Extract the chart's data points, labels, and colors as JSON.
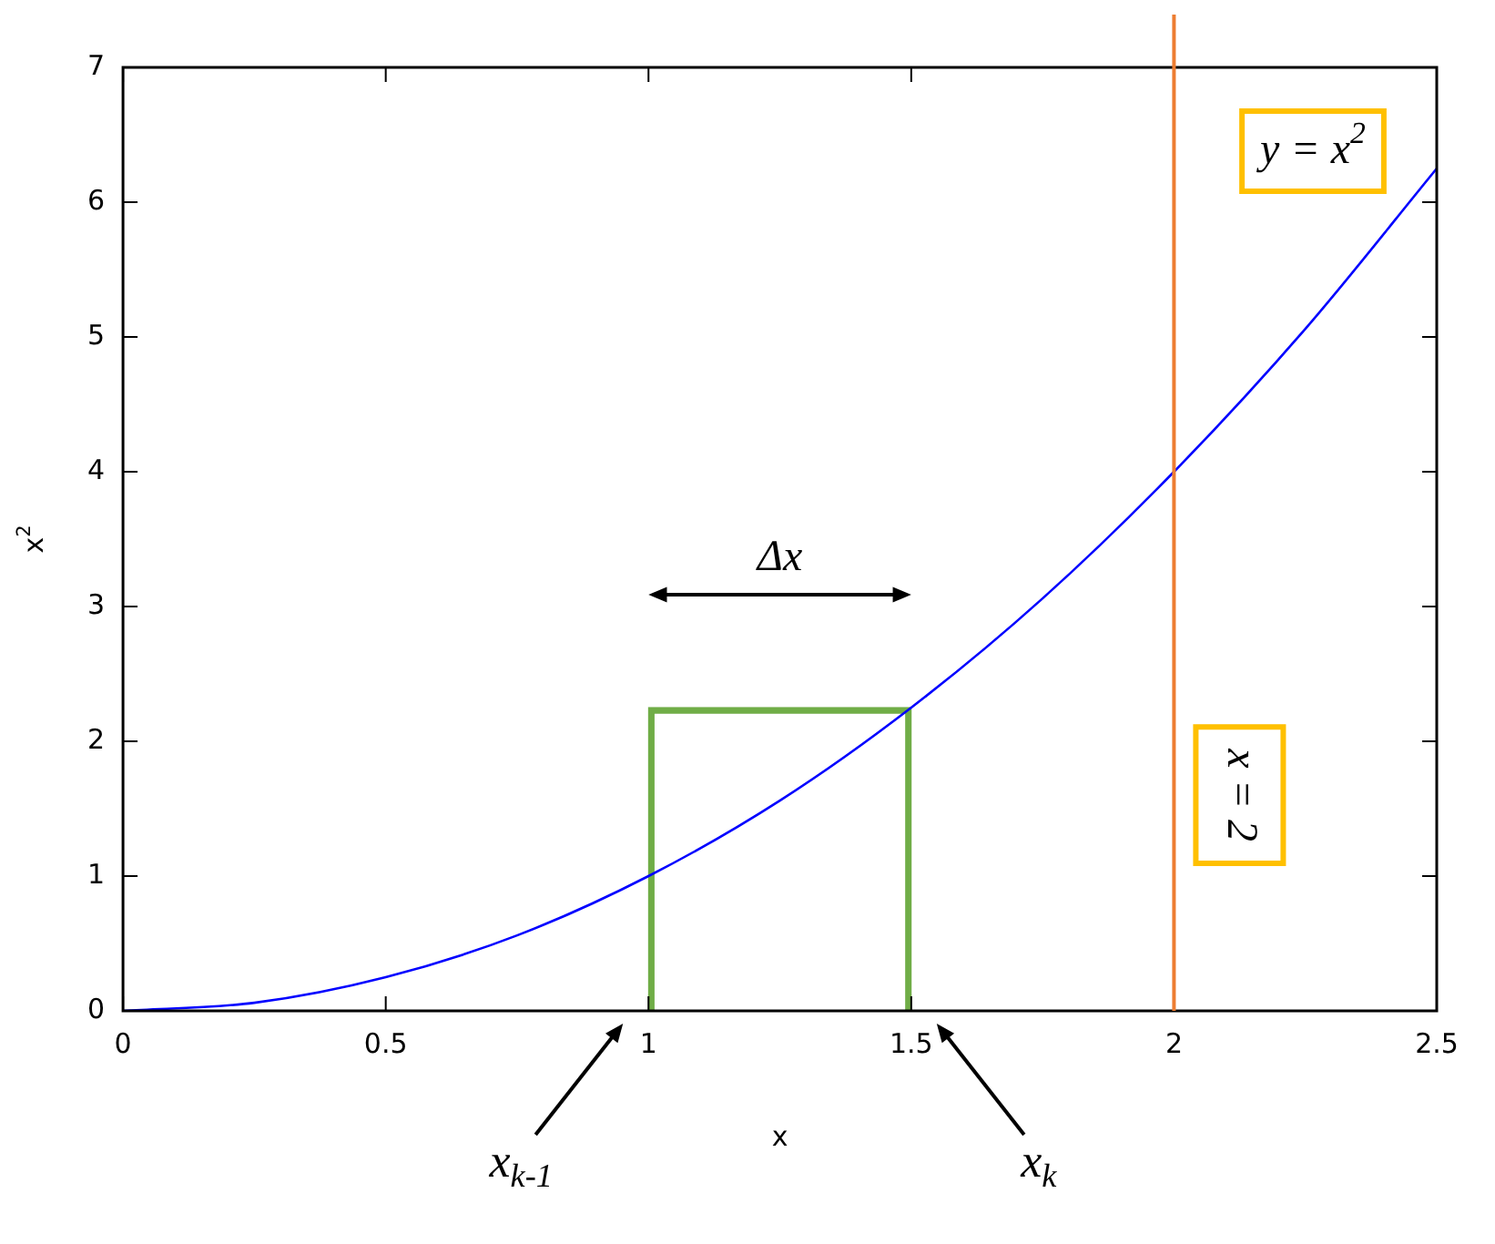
{
  "chart_data": {
    "type": "line",
    "xlabel": "x",
    "ylabel": "x$^{2}$",
    "xlim": [
      0,
      2.5
    ],
    "xticks": [
      0,
      0.5,
      1,
      1.5,
      2,
      2.5
    ],
    "ylim": [
      0,
      7
    ],
    "yticks": [
      0,
      1,
      2,
      3,
      4,
      5,
      6,
      7
    ],
    "grid": false,
    "legend": false,
    "marker": "none",
    "line_style": "solid",
    "series": [
      {
        "color": "#0000ff",
        "x": [
          0,
          0.25,
          0.5,
          0.75,
          1,
          1.25,
          1.5,
          1.75,
          2,
          2.25,
          2.5
        ],
        "values": [
          0,
          0.06,
          0.25,
          0.56,
          1,
          1.56,
          2.25,
          3.06,
          4,
          5.06,
          6.25
        ]
      },
      {
        "type": "bar",
        "color": "#70ad47",
        "x": [
          1.25
        ],
        "values": [
          2.25
        ]
      }
    ],
    "ref_lines": [
      {
        "axis": "x",
        "value": 2,
        "label": "x = 2",
        "color": "#ed7d31"
      }
    ],
    "annotations": [
      "y = x$^{2}$",
      "Δx",
      "x$_{k-1}$",
      "x$_{k}$"
    ]
  }
}
